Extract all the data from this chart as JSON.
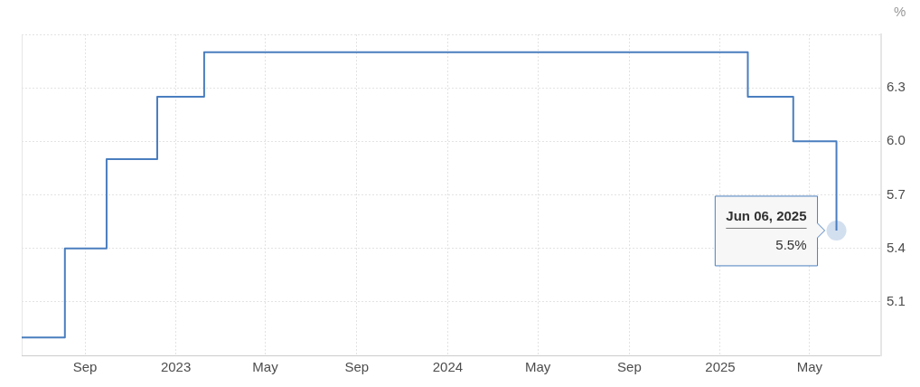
{
  "chart_data": {
    "type": "step",
    "ylabel": "%",
    "x": [
      "2022-06-08",
      "2022-08-05",
      "2022-09-30",
      "2022-12-07",
      "2023-02-08",
      "2025-02-07",
      "2025-04-09",
      "2025-06-06"
    ],
    "values": [
      4.9,
      5.4,
      5.9,
      6.25,
      6.5,
      6.25,
      6.0,
      5.5
    ],
    "color": "#4a7ebf",
    "value_labels": [
      null,
      null,
      null,
      null,
      null,
      null,
      null,
      "5.5%"
    ],
    "annotations": [
      {
        "text": "Jun 06, 2025",
        "x": "2025-06-06",
        "y": 5.5
      }
    ],
    "xlim": [
      "2022-06-08",
      "2025-08-05"
    ],
    "xticks": [
      {
        "value": "2022-09-01",
        "label": "Sep"
      },
      {
        "value": "2023-01-01",
        "label": "2023"
      },
      {
        "value": "2023-05-01",
        "label": "May"
      },
      {
        "value": "2023-09-01",
        "label": "Sep"
      },
      {
        "value": "2024-01-01",
        "label": "2024"
      },
      {
        "value": "2024-05-01",
        "label": "May"
      },
      {
        "value": "2024-09-01",
        "label": "Sep"
      },
      {
        "value": "2025-01-01",
        "label": "2025"
      },
      {
        "value": "2025-05-01",
        "label": "May"
      }
    ],
    "ylim": [
      4.8,
      6.6
    ],
    "yticks": [
      {
        "value": 4.8,
        "label": null
      },
      5.1,
      5.4,
      5.7,
      {
        "value": 6,
        "label": "6.0"
      },
      6.3,
      {
        "value": 6.6,
        "label": null
      }
    ],
    "grid": true
  }
}
